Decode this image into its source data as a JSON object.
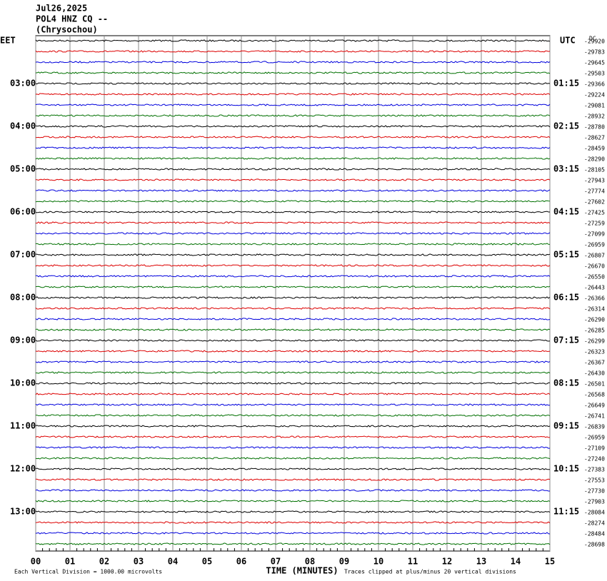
{
  "chart_data": {
    "type": "helicorder",
    "header": {
      "date": "Jul26,2025",
      "station": "POL4 HNZ CQ --",
      "location": "(Chrysochou)"
    },
    "left_title": "EET",
    "right_title": "UTC",
    "dc_label": "DC",
    "left_labels": [
      "03:00",
      "04:00",
      "05:00",
      "06:00",
      "07:00",
      "08:00",
      "09:00",
      "10:00",
      "11:00",
      "12:00",
      "13:00"
    ],
    "right_labels": [
      "01:15",
      "02:15",
      "03:15",
      "04:15",
      "05:15",
      "06:15",
      "07:15",
      "08:15",
      "09:15",
      "10:15",
      "11:15"
    ],
    "offsets": [
      -29920,
      -29783,
      -29645,
      -29503,
      -29366,
      -29224,
      -29081,
      -28932,
      -28780,
      -28627,
      -28459,
      -28290,
      -28105,
      -27943,
      -27774,
      -27602,
      -27425,
      -27259,
      -27099,
      -26959,
      -26807,
      -26670,
      -26550,
      -26443,
      -26366,
      -26314,
      -26290,
      -26285,
      -26299,
      -26323,
      -26367,
      -26430,
      -26501,
      -26568,
      -26649,
      -26741,
      -26839,
      -26959,
      -27109,
      -27240,
      -27383,
      -27553,
      -27730,
      -27903,
      -28084,
      -28274,
      -28484,
      -28698
    ],
    "xticks": [
      "00",
      "01",
      "02",
      "03",
      "04",
      "05",
      "06",
      "07",
      "08",
      "09",
      "10",
      "11",
      "12",
      "13",
      "14",
      "15"
    ],
    "xlabel": "TIME (MINUTES)",
    "footer_left": "Each Vertical Division = 1000.00 microvolts",
    "footer_right": "Traces clipped at plus/minus 20 vertical divisions",
    "colors": [
      "#000000",
      "#dd0000",
      "#0000dd",
      "#007000"
    ]
  }
}
